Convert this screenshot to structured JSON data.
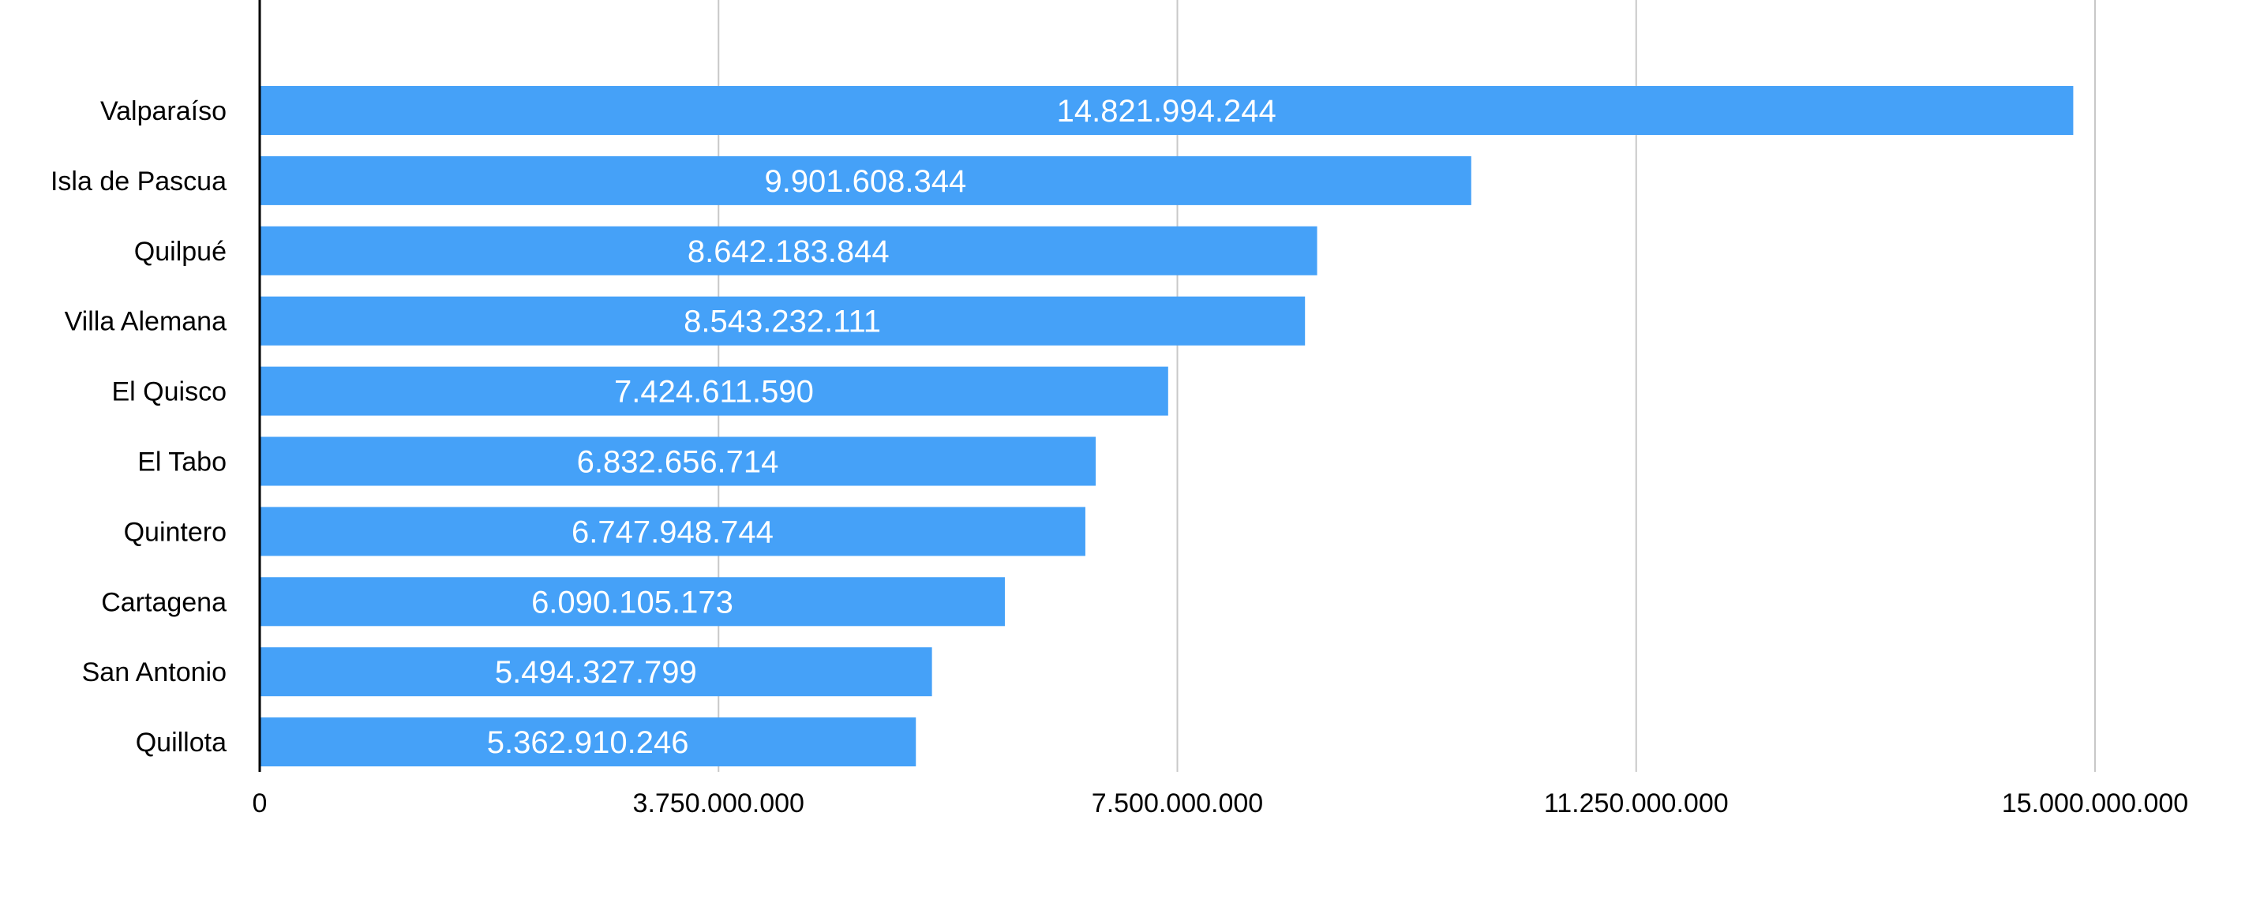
{
  "chart_data": {
    "type": "bar",
    "orientation": "horizontal",
    "categories": [
      "Valparaíso",
      "Isla de Pascua",
      "Quilpué",
      "Villa Alemana",
      "El Quisco",
      "El Tabo",
      "Quintero",
      "Cartagena",
      "San Antonio",
      "Quillota"
    ],
    "values": [
      14821994244,
      9901608344,
      8642183844,
      8543232111,
      7424611590,
      6832656714,
      6747948744,
      6090105173,
      5494327799,
      5362910246
    ],
    "data_labels": [
      "14.821.994.244",
      "9.901.608.344",
      "8.642.183.844",
      "8.543.232.111",
      "7.424.611.590",
      "6.832.656.714",
      "6.747.948.744",
      "6.090.105.173",
      "5.494.327.799",
      "5.362.910.246"
    ],
    "xlim": [
      0,
      15000000000
    ],
    "ticks": [
      0,
      3750000000,
      7500000000,
      11250000000,
      15000000000
    ],
    "tick_labels": [
      "0",
      "3.750.000.000",
      "7.500.000.000",
      "11.250.000.000",
      "15.000.000.000"
    ],
    "title": "",
    "xlabel": "",
    "ylabel": "",
    "grid": true,
    "legend": "none",
    "bar_color": "#45A1F8",
    "grid_color": "#C8C8C8",
    "axis_color": "#000000"
  }
}
